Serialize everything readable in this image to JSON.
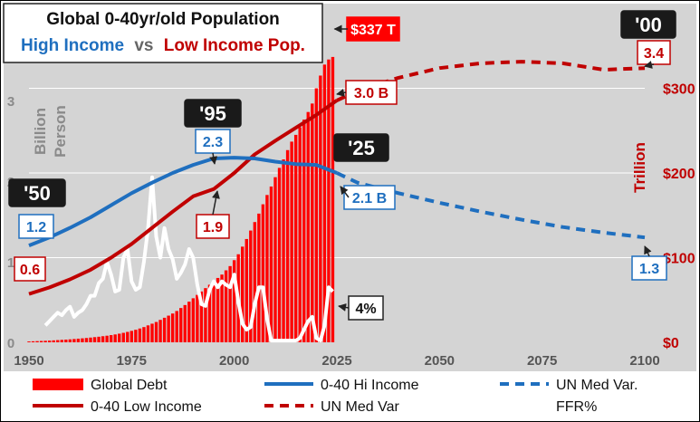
{
  "chart_data": {
    "type": "combo",
    "title_line1": "Global 0-40yr/old Population",
    "title_hi": "High Income",
    "title_vs": "vs",
    "title_lo": "Low Income Pop.",
    "left_axis_label_1": "Billion",
    "left_axis_label_2": "Person",
    "right_axis_label": "Trillion",
    "x_ticks": [
      "1950",
      "1975",
      "2000",
      "2025",
      "2050",
      "2075",
      "2100"
    ],
    "left_ticks": [
      "0",
      "1",
      "2",
      "3"
    ],
    "right_ticks": [
      "$0",
      "$100",
      "$200",
      "$300"
    ],
    "xlim": [
      1950,
      2100
    ],
    "ylim_left": [
      0,
      4.2
    ],
    "ylim_right": [
      0,
      400
    ],
    "colors": {
      "hi": "#1f6fbf",
      "lo": "#c00000",
      "debt": "#ff0000",
      "ffr": "#ffffff",
      "bg": "#d4d4d4"
    },
    "series": [
      {
        "name": "Global Debt",
        "kind": "bar",
        "axis": "right",
        "x": [
          1950,
          1951,
          1952,
          1953,
          1954,
          1955,
          1956,
          1957,
          1958,
          1959,
          1960,
          1961,
          1962,
          1963,
          1964,
          1965,
          1966,
          1967,
          1968,
          1969,
          1970,
          1971,
          1972,
          1973,
          1974,
          1975,
          1976,
          1977,
          1978,
          1979,
          1980,
          1981,
          1982,
          1983,
          1984,
          1985,
          1986,
          1987,
          1988,
          1989,
          1990,
          1991,
          1992,
          1993,
          1994,
          1995,
          1996,
          1997,
          1998,
          1999,
          2000,
          2001,
          2002,
          2003,
          2004,
          2005,
          2006,
          2007,
          2008,
          2009,
          2010,
          2011,
          2012,
          2013,
          2014,
          2015,
          2016,
          2017,
          2018,
          2019,
          2020,
          2021,
          2022,
          2023,
          2024
        ],
        "values": [
          1,
          1.2,
          1.4,
          1.6,
          1.8,
          2,
          2.3,
          2.6,
          2.9,
          3.2,
          3.5,
          3.9,
          4.3,
          4.7,
          5.1,
          5.6,
          6.1,
          6.6,
          7.2,
          7.8,
          8.5,
          9.3,
          10.2,
          11.2,
          12.3,
          13.5,
          14.8,
          16.3,
          18,
          20,
          22,
          24,
          26.5,
          29,
          31.5,
          34,
          37,
          40.5,
          44,
          48,
          52,
          56,
          60,
          64,
          68,
          72,
          76,
          80,
          85,
          90,
          97,
          104,
          113,
          122,
          132,
          142,
          152,
          163,
          174,
          184,
          195,
          206,
          216,
          227,
          237,
          245,
          254,
          263,
          272,
          282,
          300,
          315,
          328,
          334,
          337
        ]
      },
      {
        "name": "0-40 Hi Income",
        "kind": "line",
        "axis": "left",
        "x": [
          1950,
          1955,
          1960,
          1965,
          1970,
          1975,
          1980,
          1985,
          1990,
          1995,
          2000,
          2005,
          2010,
          2015,
          2020,
          2025
        ],
        "values": [
          1.2,
          1.3,
          1.42,
          1.55,
          1.7,
          1.85,
          1.98,
          2.1,
          2.2,
          2.28,
          2.29,
          2.28,
          2.24,
          2.21,
          2.2,
          2.1
        ]
      },
      {
        "name": "UN Med Var.",
        "kind": "line-dashed",
        "axis": "left",
        "x": [
          2025,
          2030,
          2040,
          2050,
          2060,
          2070,
          2080,
          2090,
          2100
        ],
        "values": [
          2.1,
          1.98,
          1.85,
          1.73,
          1.62,
          1.52,
          1.43,
          1.36,
          1.3
        ]
      },
      {
        "name": "0-40 Low Income",
        "kind": "line",
        "axis": "left",
        "x": [
          1950,
          1955,
          1960,
          1965,
          1970,
          1975,
          1980,
          1985,
          1990,
          1995,
          2000,
          2005,
          2010,
          2015,
          2020,
          2025
        ],
        "values": [
          0.6,
          0.68,
          0.78,
          0.9,
          1.05,
          1.22,
          1.42,
          1.62,
          1.81,
          1.9,
          2.1,
          2.33,
          2.5,
          2.66,
          2.82,
          3.0
        ]
      },
      {
        "name": "UN Med Var",
        "kind": "line-dashed",
        "axis": "left",
        "x": [
          2025,
          2030,
          2040,
          2050,
          2060,
          2070,
          2080,
          2090,
          2100
        ],
        "values": [
          3.0,
          3.12,
          3.28,
          3.4,
          3.46,
          3.48,
          3.46,
          3.38,
          3.4
        ]
      },
      {
        "name": "FFR%",
        "kind": "line",
        "axis": "right",
        "x": [
          1954,
          1955,
          1956,
          1957,
          1958,
          1959,
          1960,
          1961,
          1962,
          1963,
          1964,
          1965,
          1966,
          1967,
          1968,
          1969,
          1970,
          1971,
          1972,
          1973,
          1974,
          1975,
          1976,
          1977,
          1978,
          1979,
          1980,
          1981,
          1982,
          1983,
          1984,
          1985,
          1986,
          1987,
          1988,
          1989,
          1990,
          1991,
          1992,
          1993,
          1994,
          1995,
          1996,
          1997,
          1998,
          1999,
          2000,
          2001,
          2002,
          2003,
          2004,
          2005,
          2006,
          2007,
          2008,
          2009,
          2010,
          2011,
          2012,
          2013,
          2014,
          2015,
          2016,
          2017,
          2018,
          2019,
          2020,
          2021,
          2022,
          2023,
          2024
        ],
        "values": [
          20,
          25,
          30,
          35,
          32,
          38,
          42,
          30,
          35,
          38,
          45,
          55,
          55,
          70,
          75,
          95,
          80,
          60,
          62,
          100,
          110,
          72,
          62,
          65,
          95,
          135,
          195,
          125,
          100,
          135,
          110,
          98,
          75,
          82,
          92,
          110,
          100,
          68,
          45,
          43,
          62,
          72,
          65,
          72,
          68,
          65,
          80,
          48,
          22,
          15,
          18,
          45,
          65,
          65,
          28,
          2,
          2,
          2,
          2,
          2,
          2,
          2,
          5,
          15,
          25,
          30,
          5,
          2,
          20,
          65,
          60
        ]
      }
    ],
    "labels": {
      "year_50": "'50",
      "year_95": "'95",
      "year_25": "'25",
      "year_00": "'00",
      "debt_337": "$337 T",
      "lo_06": "0.6",
      "lo_19": "1.9",
      "lo_30": "3.0 B",
      "lo_34": "3.4",
      "hi_12": "1.2",
      "hi_23": "2.3",
      "hi_21": "2.1 B",
      "hi_13": "1.3",
      "ffr_4": "4%"
    },
    "legend": {
      "debt": "Global Debt",
      "hi": "0-40 Hi Income",
      "hi_proj": "UN Med Var.",
      "lo": "0-40 Low Income",
      "lo_proj": "UN Med Var",
      "ffr": "FFR%"
    }
  }
}
